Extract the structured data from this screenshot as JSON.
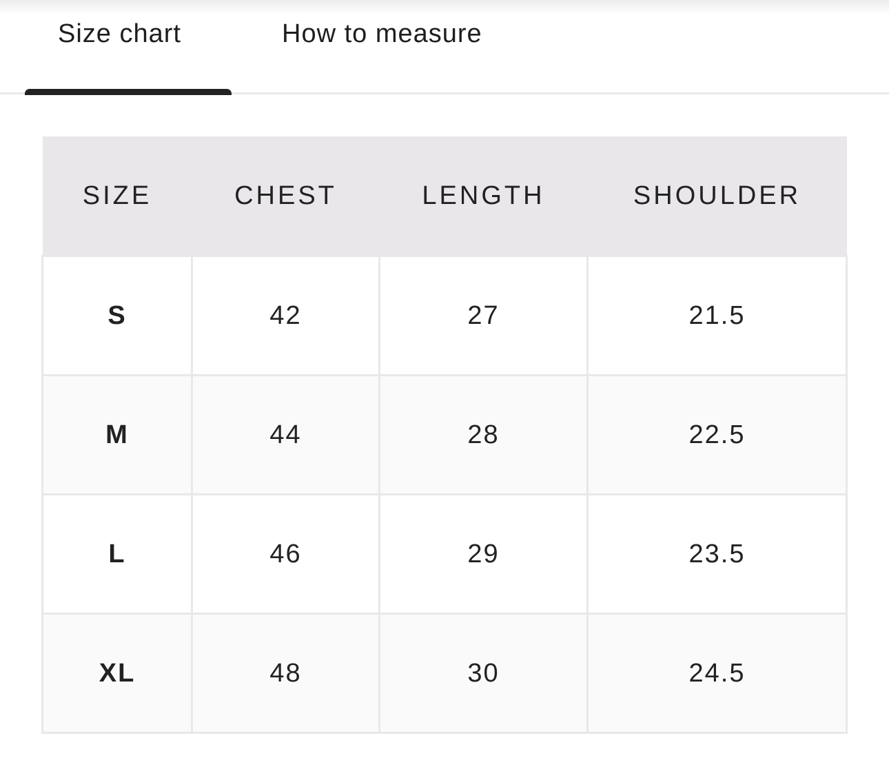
{
  "tabs": [
    {
      "label": "Size chart",
      "active": true
    },
    {
      "label": "How to measure",
      "active": false
    }
  ],
  "table": {
    "headers": [
      "SIZE",
      "CHEST",
      "LENGTH",
      "SHOULDER"
    ],
    "rows": [
      [
        "S",
        "42",
        "27",
        "21.5"
      ],
      [
        "M",
        "44",
        "28",
        "22.5"
      ],
      [
        "L",
        "46",
        "29",
        "23.5"
      ],
      [
        "XL",
        "48",
        "30",
        "24.5"
      ]
    ]
  }
}
